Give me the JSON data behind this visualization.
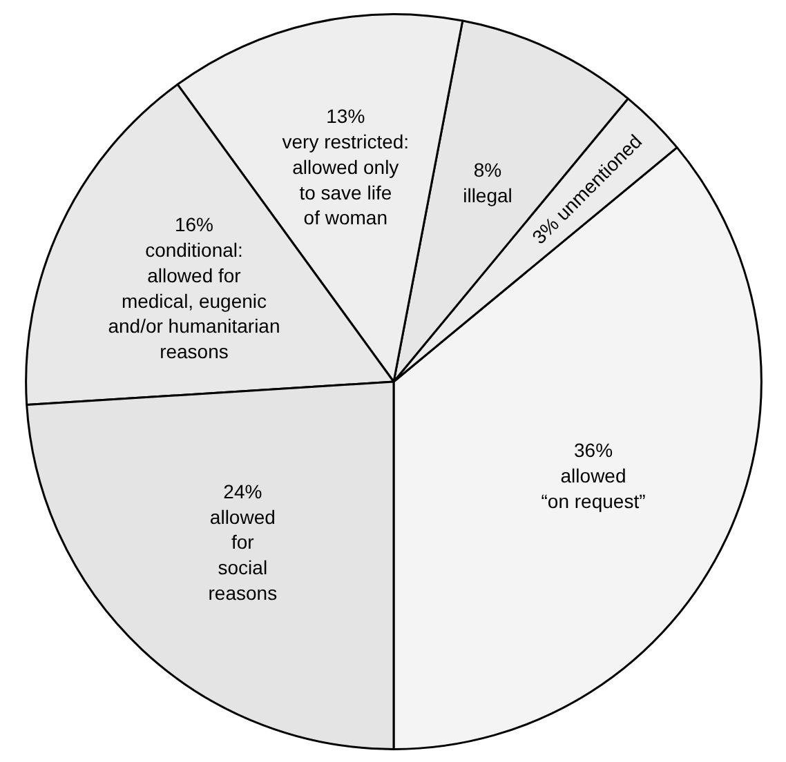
{
  "chart_data": {
    "type": "pie",
    "categories": [
      "allowed\n“on request”",
      "unmentioned",
      "illegal",
      "very restricted:\nallowed only\nto save life\nof woman",
      "conditional:\nallowed for\nmedical, eugenic\nand/or humanitarian\nreasons",
      "allowed\nfor\nsocial\nreasons"
    ],
    "values": [
      36,
      3,
      8,
      13,
      16,
      24
    ],
    "value_labels": [
      "36%",
      "3%",
      "8%",
      "13%",
      "16%",
      "24%"
    ],
    "colors": [
      "#f4f4f4",
      "#ececec",
      "#e6e6e6",
      "#eeeeee",
      "#e8e8e8",
      "#e4e4e4"
    ]
  }
}
